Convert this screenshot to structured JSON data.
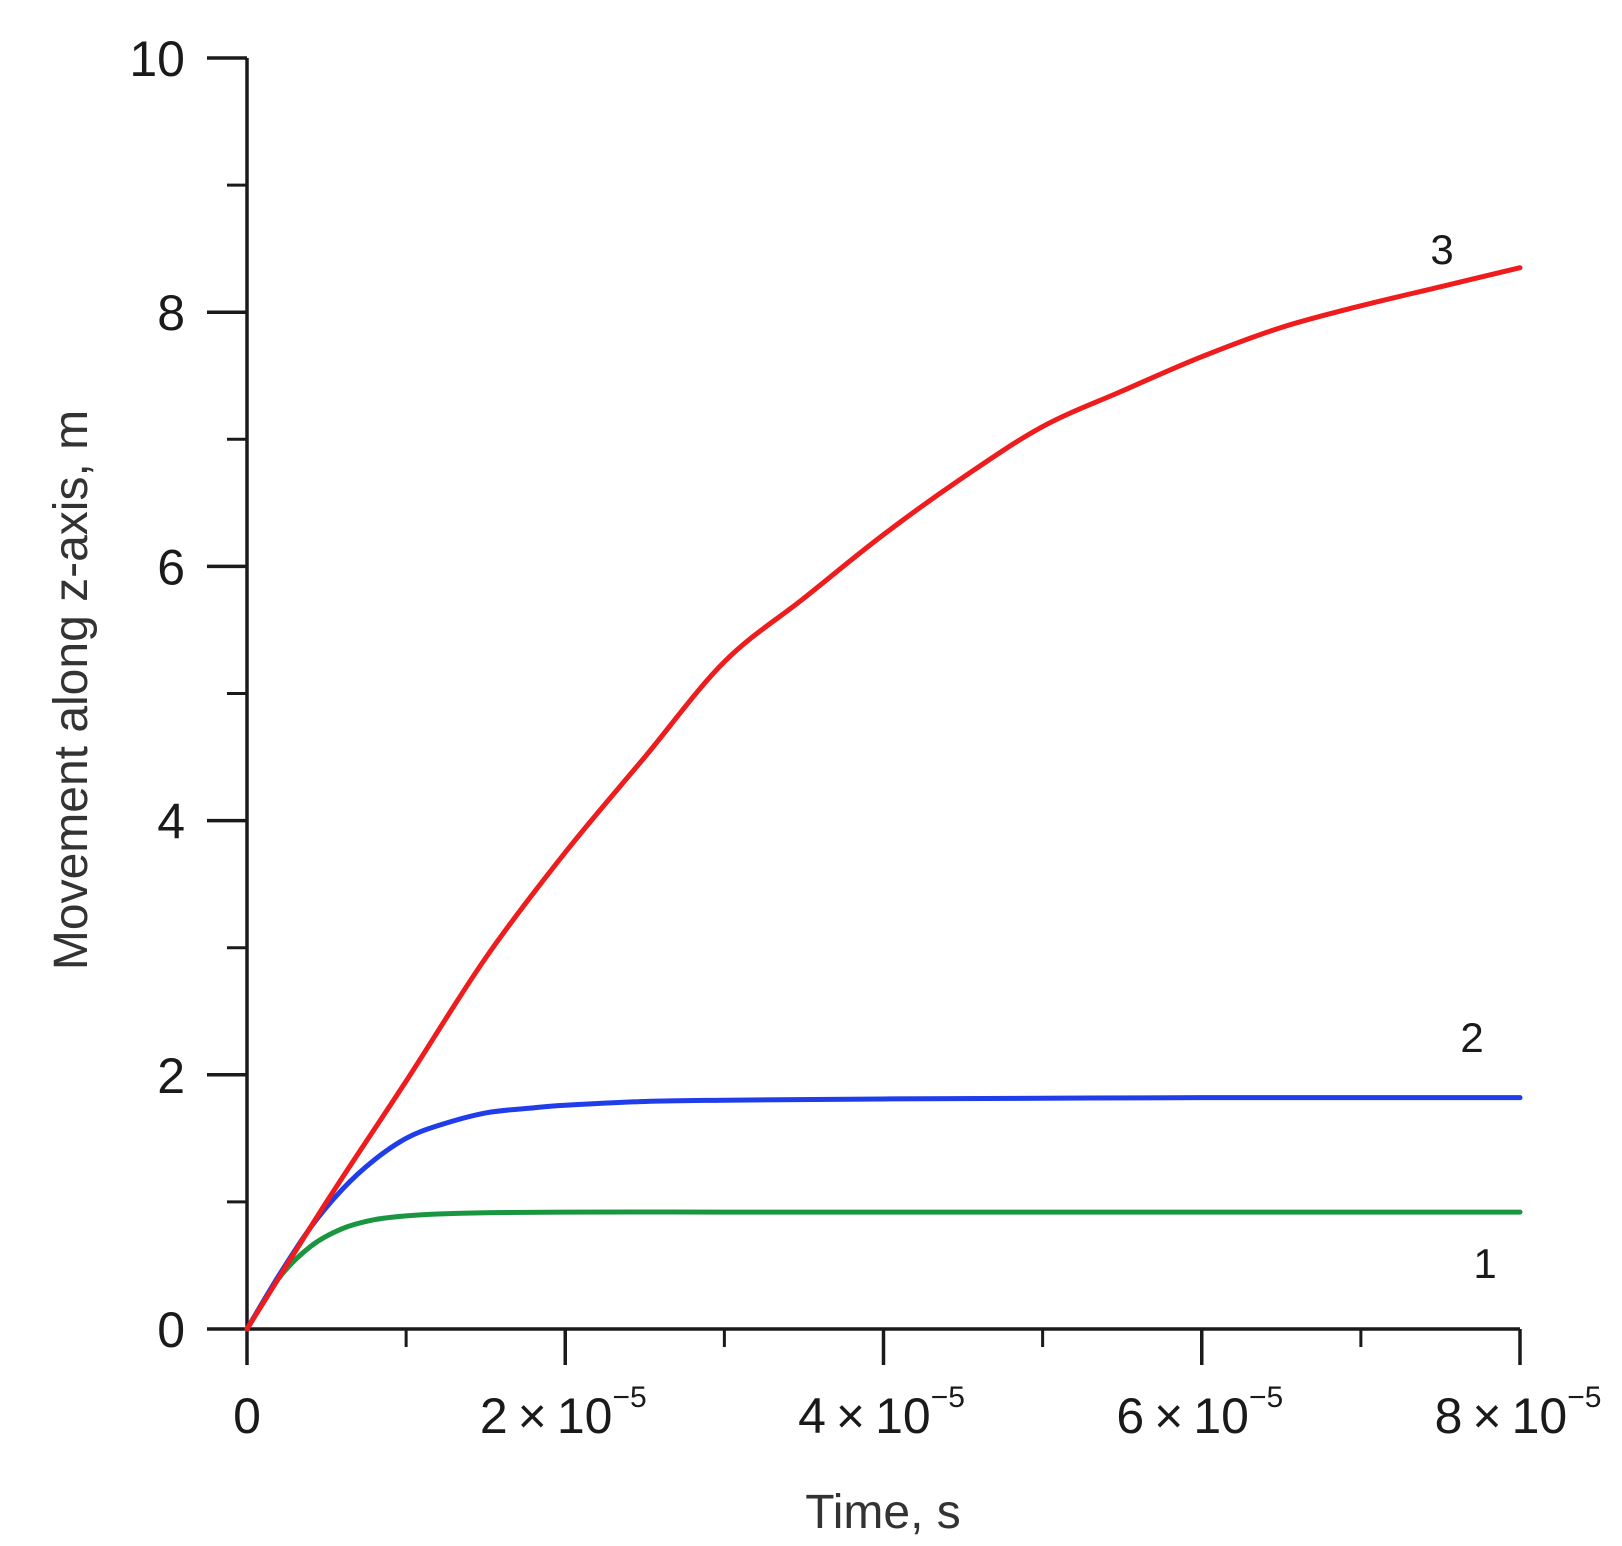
{
  "chart_data": {
    "type": "line",
    "title": "",
    "xlabel": "Time, s",
    "ylabel": "Movement along z-axis, m",
    "xlim": [
      0,
      8e-05
    ],
    "ylim": [
      0,
      10
    ],
    "grid": false,
    "x_major_ticks": [
      {
        "value": 0,
        "label": "0"
      },
      {
        "value": 2e-05,
        "mantissa": "2",
        "times": "×",
        "base": "10",
        "exponent": "−5"
      },
      {
        "value": 4e-05,
        "mantissa": "4",
        "times": "×",
        "base": "10",
        "exponent": "−5"
      },
      {
        "value": 6e-05,
        "mantissa": "6",
        "times": "×",
        "base": "10",
        "exponent": "−5"
      },
      {
        "value": 8e-05,
        "mantissa": "8",
        "times": "×",
        "base": "10",
        "exponent": "−5"
      }
    ],
    "x_minor_ticks": [
      1e-05,
      3e-05,
      5e-05,
      7e-05
    ],
    "y_major_ticks": [
      {
        "value": 0,
        "label": "0"
      },
      {
        "value": 2,
        "label": "2"
      },
      {
        "value": 4,
        "label": "4"
      },
      {
        "value": 6,
        "label": "6"
      },
      {
        "value": 8,
        "label": "8"
      },
      {
        "value": 10,
        "label": "10"
      }
    ],
    "y_minor_ticks": [
      1,
      3,
      5,
      7,
      9
    ],
    "series": [
      {
        "name": "1",
        "color": "#1a9641",
        "x": [
          0,
          2e-06,
          4e-06,
          6e-06,
          8e-06,
          1e-05,
          1.2e-05,
          1.5e-05,
          2e-05,
          3e-05,
          4e-05,
          6e-05,
          8e-05
        ],
        "y": [
          0,
          0.4,
          0.65,
          0.79,
          0.86,
          0.89,
          0.905,
          0.915,
          0.92,
          0.92,
          0.92,
          0.92,
          0.92
        ]
      },
      {
        "name": "2",
        "color": "#1f3de8",
        "x": [
          0,
          2e-06,
          4e-06,
          6e-06,
          8e-06,
          1e-05,
          1.2e-05,
          1.5e-05,
          1.8e-05,
          2e-05,
          2.5e-05,
          3e-05,
          4e-05,
          6e-05,
          8e-05
        ],
        "y": [
          0,
          0.42,
          0.8,
          1.1,
          1.33,
          1.5,
          1.6,
          1.7,
          1.74,
          1.76,
          1.79,
          1.8,
          1.81,
          1.82,
          1.82
        ]
      },
      {
        "name": "3",
        "color": "#ee1c1c",
        "x": [
          0,
          5e-06,
          1e-05,
          1.5e-05,
          2e-05,
          2.5e-05,
          3e-05,
          3.5e-05,
          4e-05,
          4.5e-05,
          5e-05,
          5.5e-05,
          6e-05,
          6.5e-05,
          7e-05,
          7.5e-05,
          8e-05
        ],
        "y": [
          0,
          1.0,
          1.95,
          2.92,
          3.75,
          4.5,
          5.25,
          5.75,
          6.25,
          6.7,
          7.1,
          7.38,
          7.65,
          7.88,
          8.05,
          8.2,
          8.35
        ]
      }
    ],
    "annotations": [
      {
        "text": "1",
        "series": "1"
      },
      {
        "text": "2",
        "series": "2"
      },
      {
        "text": "3",
        "series": "3"
      }
    ]
  }
}
